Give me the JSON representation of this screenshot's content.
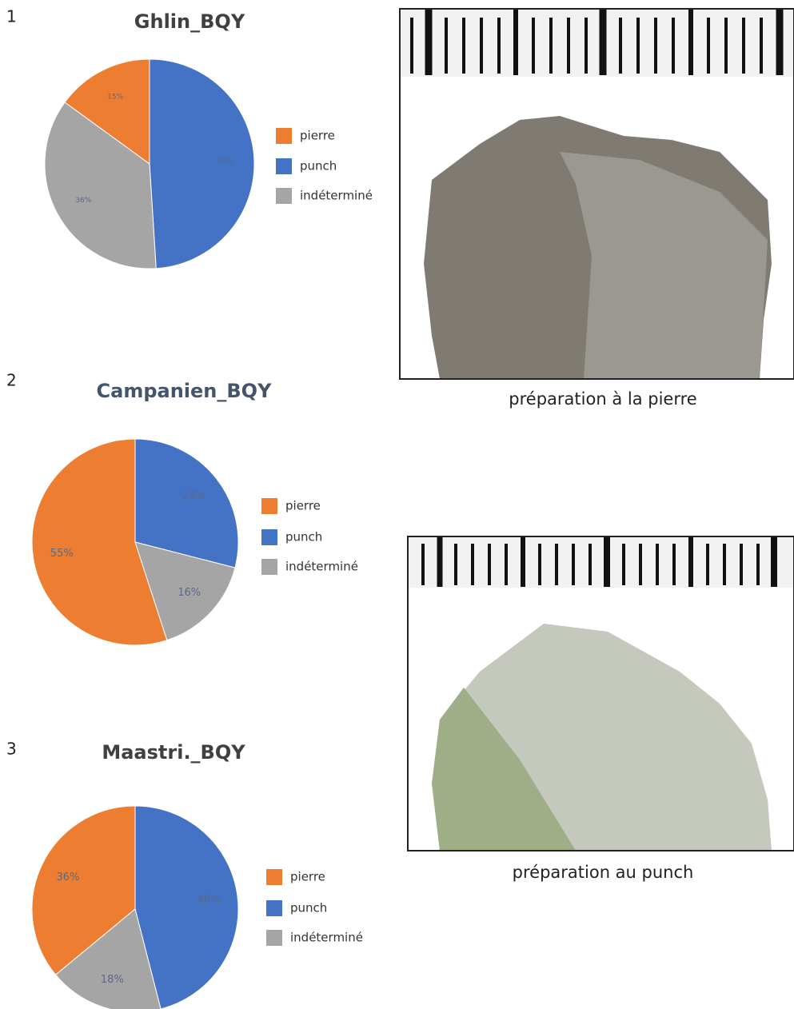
{
  "chart_data": [
    {
      "type": "pie",
      "title": "Ghlin_BQY",
      "categories": [
        "pierre",
        "punch",
        "indéterminé"
      ],
      "values": [
        15,
        49,
        36
      ],
      "value_labels": [
        "15%",
        "49%",
        "36%"
      ],
      "colors": [
        "#ed7d31",
        "#4472c4",
        "#a5a5a5"
      ]
    },
    {
      "type": "pie",
      "title": "Campanien_BQY",
      "categories": [
        "pierre",
        "punch",
        "indéterminé"
      ],
      "values": [
        55,
        29,
        16
      ],
      "value_labels": [
        "55%",
        "29%",
        "16%"
      ],
      "colors": [
        "#ed7d31",
        "#4472c4",
        "#a5a5a5"
      ]
    },
    {
      "type": "pie",
      "title": "Maastri._BQY",
      "categories": [
        "pierre",
        "punch",
        "indéterminé"
      ],
      "values": [
        36,
        46,
        18
      ],
      "value_labels": [
        "36%",
        "46%",
        "18%"
      ],
      "colors": [
        "#ed7d31",
        "#4472c4",
        "#a5a5a5"
      ]
    }
  ],
  "panel_labels": [
    "1",
    "2",
    "3"
  ],
  "photo_captions": [
    "préparation à la pierre",
    "préparation au punch"
  ]
}
